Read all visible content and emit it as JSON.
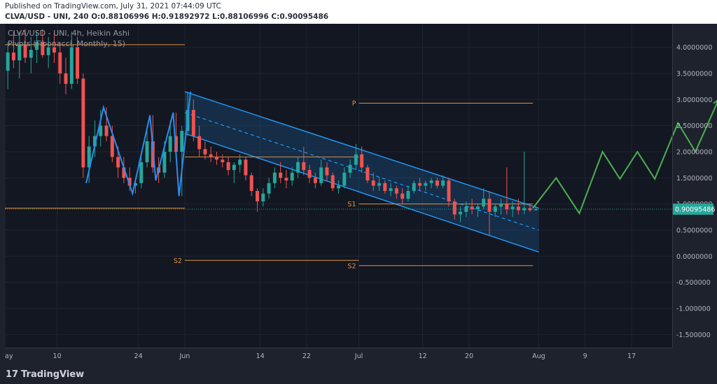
{
  "header": {
    "published": "Published on TradingView.com, July 31, 2021 07:44:09 UTC",
    "ohlc": "CLVA/USD - UNI, 240  O:0.88106996 H:0.91892972 L:0.88106996 C:0.90095486"
  },
  "legend": {
    "symbol": "CLVA/USD - UNI, 4h, Heikin Ashi",
    "indicator": "Pivots (Fibonacci, Monthly, 15)"
  },
  "footer": {
    "logo": "TradingView"
  },
  "colors": {
    "up": "#26a69a",
    "down": "#ef5350",
    "channel": "#2196f3",
    "pivot": "#e0913f",
    "forecast": "#4caf50",
    "price_badge": "#26a69a"
  },
  "chart_data": {
    "type": "candlestick",
    "ylim": [
      -1.75,
      4.45
    ],
    "yticks": [
      "4.0000000",
      "3.5000000",
      "3.0000000",
      "2.5000000",
      "2.0000000",
      "1.5000000",
      "1.0000000",
      "0.5000000",
      "0.0000000",
      "-0.500000",
      "-1.000000",
      "-1.500000"
    ],
    "ytick_values": [
      4.0,
      3.5,
      3.0,
      2.5,
      2.0,
      1.5,
      1.0,
      0.5,
      0.0,
      -0.5,
      -1.0,
      -1.5
    ],
    "xlim": [
      "2021-05-01",
      "2021-08-24"
    ],
    "xticks": [
      {
        "label": "ay",
        "date": "2021-05-01"
      },
      {
        "label": "10",
        "date": "2021-05-10"
      },
      {
        "label": "24",
        "date": "2021-05-24"
      },
      {
        "label": "Jun",
        "date": "2021-06-01"
      },
      {
        "label": "14",
        "date": "2021-06-14"
      },
      {
        "label": "22",
        "date": "2021-06-22"
      },
      {
        "label": "Jul",
        "date": "2021-07-01"
      },
      {
        "label": "12",
        "date": "2021-07-12"
      },
      {
        "label": "20",
        "date": "2021-07-20"
      },
      {
        "label": "Aug",
        "date": "2021-08-01"
      },
      {
        "label": "9",
        "date": "2021-08-09"
      },
      {
        "label": "17",
        "date": "2021-08-17"
      }
    ],
    "last_price": "0.90095486",
    "last_price_value": 0.90095486,
    "pivots": [
      {
        "label": "",
        "value": 4.05,
        "from": "2021-05-01",
        "to": "2021-06-01"
      },
      {
        "label": "",
        "value": 0.92,
        "from": "2021-05-01",
        "to": "2021-06-01"
      },
      {
        "label": "S2",
        "value": -0.08,
        "from": "2021-06-01",
        "to": "2021-07-01"
      },
      {
        "label": "",
        "value": 1.9,
        "from": "2021-06-01",
        "to": "2021-07-01"
      },
      {
        "label": "P",
        "value": 2.93,
        "from": "2021-07-01",
        "to": "2021-07-31"
      },
      {
        "label": "S1",
        "value": 1.0,
        "from": "2021-07-01",
        "to": "2021-07-31"
      },
      {
        "label": "S2",
        "value": -0.18,
        "from": "2021-07-01",
        "to": "2021-07-31"
      }
    ],
    "channel": {
      "upper": [
        {
          "date": "2021-06-01",
          "value": 3.15
        },
        {
          "date": "2021-08-01",
          "value": 0.92
        }
      ],
      "middle": [
        {
          "date": "2021-06-01",
          "value": 2.75
        },
        {
          "date": "2021-08-01",
          "value": 0.5
        }
      ],
      "lower": [
        {
          "date": "2021-06-01",
          "value": 2.35
        },
        {
          "date": "2021-08-01",
          "value": 0.08
        }
      ]
    },
    "zigzag": [
      {
        "date": "2021-05-15",
        "value": 1.4
      },
      {
        "date": "2021-05-18",
        "value": 2.85
      },
      {
        "date": "2021-05-23",
        "value": 1.2
      },
      {
        "date": "2021-05-26",
        "value": 2.7
      },
      {
        "date": "2021-05-27",
        "value": 1.45
      },
      {
        "date": "2021-05-30",
        "value": 2.75
      },
      {
        "date": "2021-05-31",
        "value": 1.15
      },
      {
        "date": "2021-06-02",
        "value": 3.15
      }
    ],
    "forecast": [
      {
        "date": "2021-07-31",
        "value": 0.92
      },
      {
        "date": "2021-08-04",
        "value": 1.5
      },
      {
        "date": "2021-08-08",
        "value": 0.82
      },
      {
        "date": "2021-08-12",
        "value": 2.0
      },
      {
        "date": "2021-08-15",
        "value": 1.48
      },
      {
        "date": "2021-08-18",
        "value": 2.0
      },
      {
        "date": "2021-08-21",
        "value": 1.48
      },
      {
        "date": "2021-08-25",
        "value": 2.55
      },
      {
        "date": "2021-08-28",
        "value": 2.0
      },
      {
        "date": "2021-09-01",
        "value": 3.0
      }
    ],
    "candles": [
      [
        "2021-05-01",
        3.55,
        4.1,
        3.2,
        3.9
      ],
      [
        "2021-05-02",
        3.9,
        4.3,
        3.6,
        3.75
      ],
      [
        "2021-05-03",
        3.75,
        4.3,
        3.4,
        4.05
      ],
      [
        "2021-05-04",
        4.05,
        4.35,
        3.7,
        3.8
      ],
      [
        "2021-05-05",
        3.8,
        4.2,
        3.5,
        3.95
      ],
      [
        "2021-05-06",
        3.95,
        4.3,
        3.7,
        4.1
      ],
      [
        "2021-05-07",
        4.1,
        4.35,
        3.8,
        3.85
      ],
      [
        "2021-05-08",
        3.85,
        4.2,
        3.6,
        4.0
      ],
      [
        "2021-05-09",
        4.0,
        4.3,
        3.7,
        3.9
      ],
      [
        "2021-05-10",
        3.9,
        4.1,
        3.3,
        3.5
      ],
      [
        "2021-05-11",
        3.5,
        3.8,
        3.1,
        3.3
      ],
      [
        "2021-05-12",
        3.3,
        4.3,
        3.2,
        4.0
      ],
      [
        "2021-05-13",
        4.0,
        4.2,
        3.3,
        3.4
      ],
      [
        "2021-05-14",
        3.4,
        3.5,
        1.5,
        1.7
      ],
      [
        "2021-05-15",
        1.7,
        2.3,
        1.4,
        2.1
      ],
      [
        "2021-05-16",
        2.1,
        2.6,
        1.9,
        2.3
      ],
      [
        "2021-05-17",
        2.3,
        2.8,
        2.1,
        2.5
      ],
      [
        "2021-05-18",
        2.5,
        2.85,
        2.2,
        2.3
      ],
      [
        "2021-05-19",
        2.3,
        2.5,
        1.8,
        1.9
      ],
      [
        "2021-05-20",
        1.9,
        2.1,
        1.5,
        1.7
      ],
      [
        "2021-05-21",
        1.7,
        1.9,
        1.4,
        1.5
      ],
      [
        "2021-05-22",
        1.5,
        1.7,
        1.25,
        1.35
      ],
      [
        "2021-05-23",
        1.35,
        1.5,
        1.2,
        1.4
      ],
      [
        "2021-05-24",
        1.4,
        1.9,
        1.3,
        1.8
      ],
      [
        "2021-05-25",
        1.8,
        2.4,
        1.7,
        2.2
      ],
      [
        "2021-05-26",
        2.2,
        2.7,
        1.6,
        1.7
      ],
      [
        "2021-05-27",
        1.7,
        1.9,
        1.4,
        1.6
      ],
      [
        "2021-05-28",
        1.6,
        2.2,
        1.5,
        2.0
      ],
      [
        "2021-05-29",
        2.0,
        2.6,
        1.8,
        2.3
      ],
      [
        "2021-05-30",
        2.3,
        2.75,
        1.9,
        2.0
      ],
      [
        "2021-05-31",
        2.0,
        2.5,
        1.15,
        2.4
      ],
      [
        "2021-06-01",
        2.4,
        3.15,
        2.3,
        2.8
      ],
      [
        "2021-06-02",
        2.8,
        3.0,
        2.2,
        2.3
      ],
      [
        "2021-06-03",
        2.3,
        2.5,
        1.9,
        2.05
      ],
      [
        "2021-06-04",
        2.05,
        2.2,
        1.85,
        1.95
      ],
      [
        "2021-06-05",
        1.95,
        2.1,
        1.8,
        1.9
      ],
      [
        "2021-06-06",
        1.9,
        2.0,
        1.75,
        1.85
      ],
      [
        "2021-06-07",
        1.85,
        1.95,
        1.7,
        1.8
      ],
      [
        "2021-06-08",
        1.8,
        1.9,
        1.55,
        1.65
      ],
      [
        "2021-06-09",
        1.65,
        1.8,
        1.4,
        1.75
      ],
      [
        "2021-06-10",
        1.75,
        1.95,
        1.6,
        1.85
      ],
      [
        "2021-06-11",
        1.85,
        1.9,
        1.45,
        1.55
      ],
      [
        "2021-06-12",
        1.55,
        1.6,
        1.15,
        1.25
      ],
      [
        "2021-06-13",
        1.25,
        1.3,
        0.85,
        1.05
      ],
      [
        "2021-06-14",
        1.05,
        1.3,
        0.95,
        1.2
      ],
      [
        "2021-06-15",
        1.2,
        1.5,
        1.1,
        1.4
      ],
      [
        "2021-06-16",
        1.4,
        1.7,
        1.3,
        1.6
      ],
      [
        "2021-06-17",
        1.6,
        1.8,
        1.4,
        1.5
      ],
      [
        "2021-06-18",
        1.5,
        1.65,
        1.3,
        1.45
      ],
      [
        "2021-06-19",
        1.45,
        1.7,
        1.35,
        1.6
      ],
      [
        "2021-06-20",
        1.6,
        1.9,
        1.5,
        1.8
      ],
      [
        "2021-06-21",
        1.8,
        2.1,
        1.55,
        1.65
      ],
      [
        "2021-06-22",
        1.65,
        1.75,
        1.4,
        1.5
      ],
      [
        "2021-06-23",
        1.5,
        1.6,
        1.3,
        1.4
      ],
      [
        "2021-06-24",
        1.4,
        1.85,
        1.35,
        1.7
      ],
      [
        "2021-06-25",
        1.7,
        1.8,
        1.45,
        1.55
      ],
      [
        "2021-06-26",
        1.55,
        1.6,
        1.25,
        1.3
      ],
      [
        "2021-06-27",
        1.3,
        1.45,
        1.2,
        1.35
      ],
      [
        "2021-06-28",
        1.35,
        1.7,
        1.3,
        1.6
      ],
      [
        "2021-06-29",
        1.6,
        1.85,
        1.5,
        1.75
      ],
      [
        "2021-06-30",
        1.75,
        2.15,
        1.65,
        1.95
      ],
      [
        "2021-07-01",
        1.95,
        2.1,
        1.6,
        1.7
      ],
      [
        "2021-07-02",
        1.7,
        1.75,
        1.4,
        1.45
      ],
      [
        "2021-07-03",
        1.45,
        1.6,
        1.25,
        1.35
      ],
      [
        "2021-07-04",
        1.35,
        1.5,
        1.25,
        1.4
      ],
      [
        "2021-07-05",
        1.4,
        1.45,
        1.2,
        1.25
      ],
      [
        "2021-07-06",
        1.25,
        1.4,
        1.15,
        1.3
      ],
      [
        "2021-07-07",
        1.3,
        1.35,
        1.1,
        1.2
      ],
      [
        "2021-07-08",
        1.2,
        1.3,
        1.0,
        1.1
      ],
      [
        "2021-07-09",
        1.1,
        1.35,
        1.05,
        1.25
      ],
      [
        "2021-07-10",
        1.25,
        1.45,
        1.2,
        1.4
      ],
      [
        "2021-07-11",
        1.4,
        1.5,
        1.25,
        1.35
      ],
      [
        "2021-07-12",
        1.35,
        1.45,
        1.25,
        1.4
      ],
      [
        "2021-07-13",
        1.4,
        1.5,
        1.3,
        1.45
      ],
      [
        "2021-07-14",
        1.45,
        1.5,
        1.3,
        1.35
      ],
      [
        "2021-07-15",
        1.35,
        1.55,
        1.3,
        1.45
      ],
      [
        "2021-07-16",
        1.45,
        1.5,
        0.95,
        1.05
      ],
      [
        "2021-07-17",
        1.05,
        1.1,
        0.7,
        0.8
      ],
      [
        "2021-07-18",
        0.8,
        0.95,
        0.65,
        0.85
      ],
      [
        "2021-07-19",
        0.85,
        1.05,
        0.75,
        0.95
      ],
      [
        "2021-07-20",
        0.95,
        1.1,
        0.8,
        0.9
      ],
      [
        "2021-07-21",
        0.9,
        1.0,
        0.75,
        0.95
      ],
      [
        "2021-07-22",
        0.95,
        1.3,
        0.9,
        1.1
      ],
      [
        "2021-07-23",
        1.1,
        1.25,
        0.4,
        0.85
      ],
      [
        "2021-07-24",
        0.85,
        1.0,
        0.75,
        0.95
      ],
      [
        "2021-07-25",
        0.95,
        1.1,
        0.8,
        1.0
      ],
      [
        "2021-07-26",
        1.0,
        1.7,
        0.8,
        0.9
      ],
      [
        "2021-07-27",
        0.9,
        1.05,
        0.75,
        0.95
      ],
      [
        "2021-07-28",
        0.95,
        1.1,
        0.8,
        0.88
      ],
      [
        "2021-07-29",
        0.88,
        2.0,
        0.8,
        0.92
      ],
      [
        "2021-07-30",
        0.92,
        1.0,
        0.85,
        0.88
      ],
      [
        "2021-07-31",
        0.88,
        0.92,
        0.88,
        0.9
      ]
    ]
  }
}
